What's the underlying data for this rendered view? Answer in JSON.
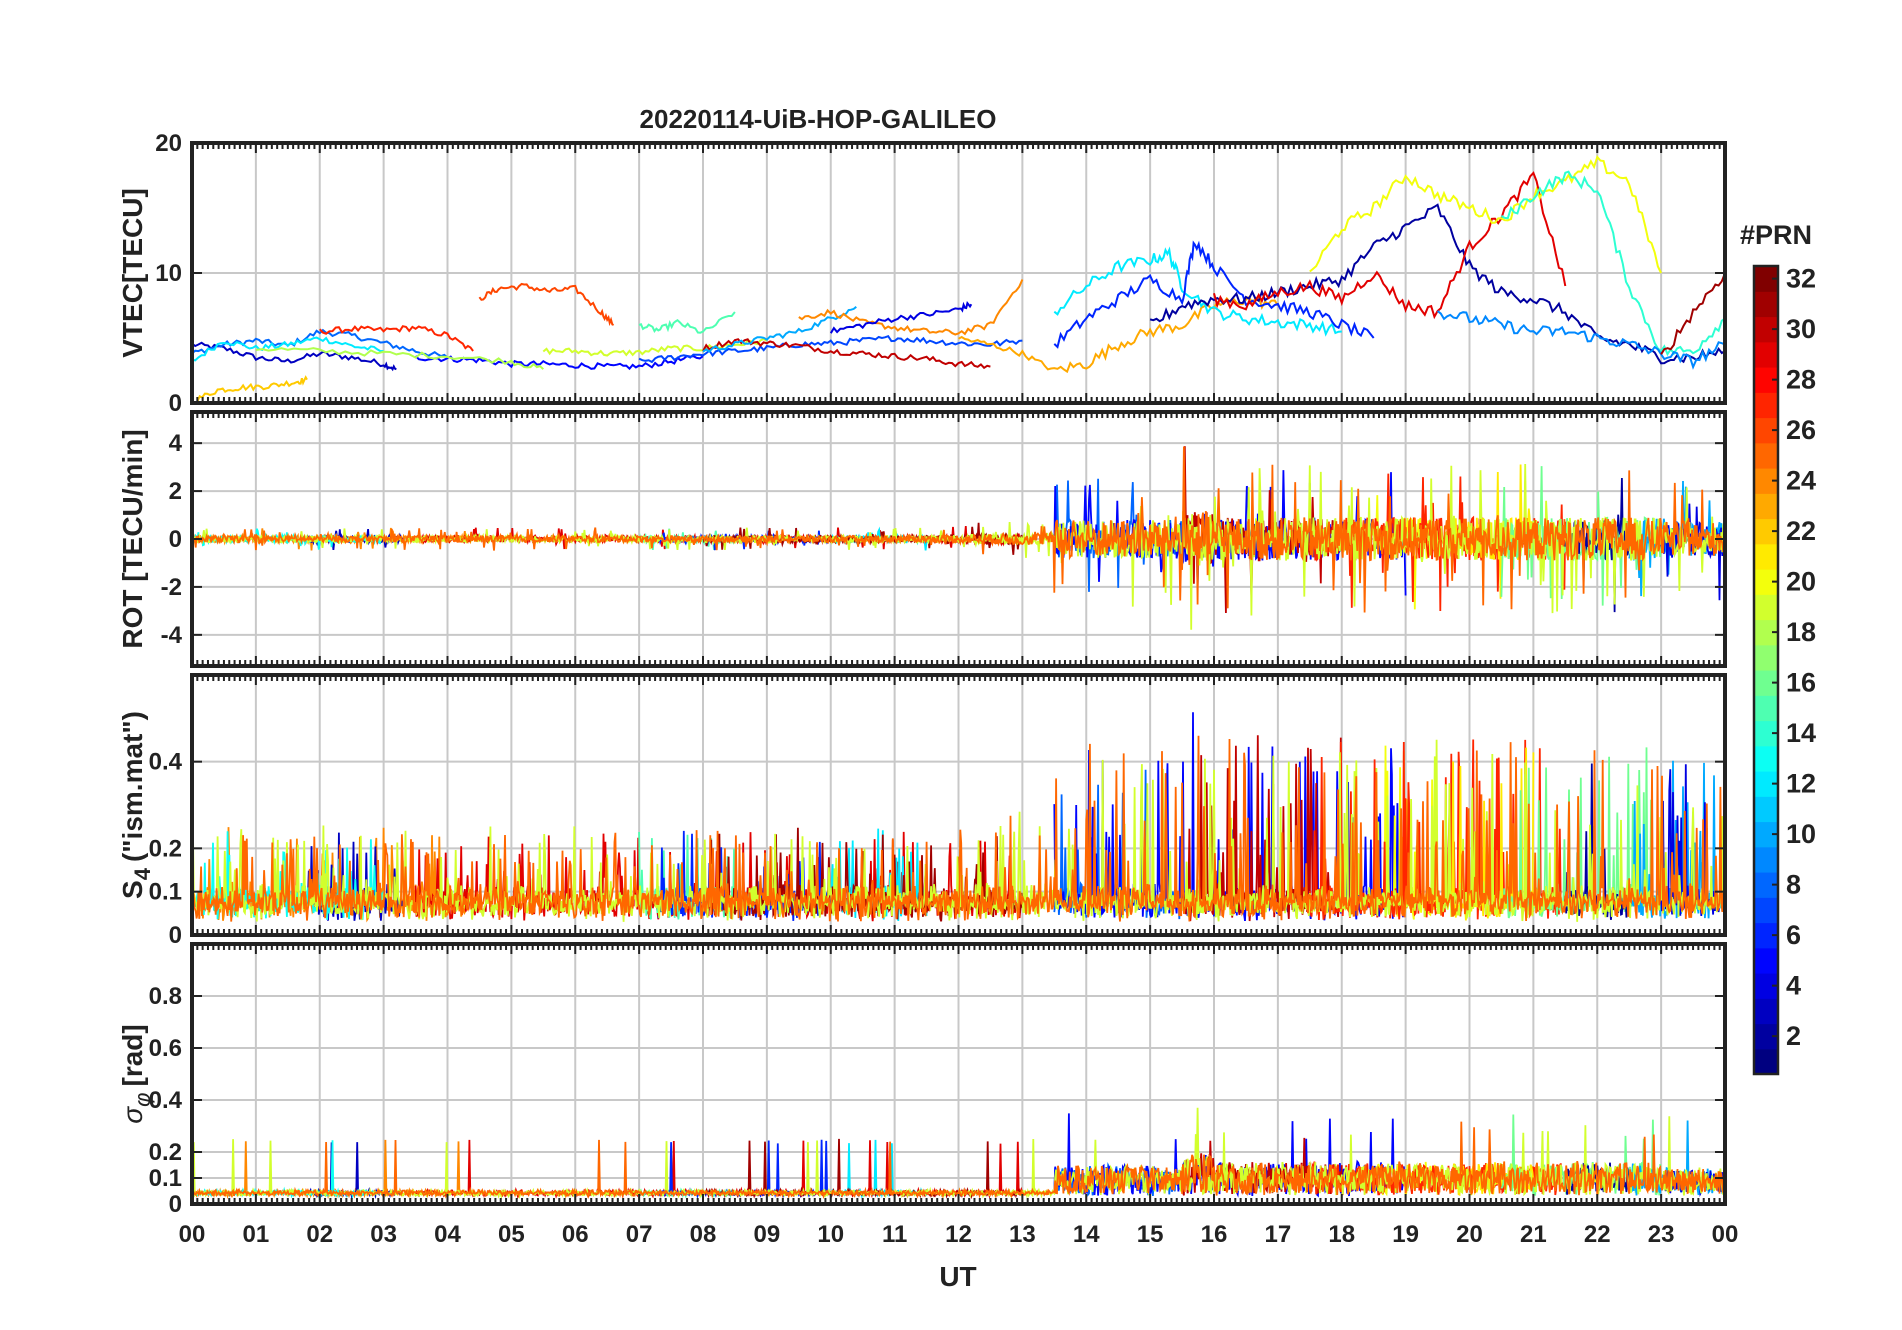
{
  "chart_data": {
    "type": "line",
    "title": "20220114-UiB-HOP-GALILEO",
    "xlabel": "UT",
    "x_ticks": [
      "00",
      "01",
      "02",
      "03",
      "04",
      "05",
      "06",
      "07",
      "08",
      "09",
      "10",
      "11",
      "12",
      "13",
      "14",
      "15",
      "16",
      "17",
      "18",
      "19",
      "20",
      "21",
      "22",
      "23",
      "00"
    ],
    "xlim": [
      0,
      24
    ],
    "grid": true,
    "colorbar": {
      "title": "#PRN",
      "range": [
        1,
        32
      ],
      "ticks": [
        2,
        4,
        6,
        8,
        10,
        12,
        14,
        16,
        18,
        20,
        22,
        24,
        26,
        28,
        30,
        32
      ],
      "colormap": "jet",
      "placement": "right"
    },
    "panels": [
      {
        "id": "vtec",
        "ylabel": "VTEC[TECU]",
        "ylim": [
          0,
          20
        ],
        "yticks": [
          0,
          10,
          20
        ],
        "series": [
          {
            "prn": 3,
            "x": [
              0,
              0.5,
              1,
              1.5,
              2,
              2.5,
              3,
              3.2
            ],
            "y": [
              4.5,
              4.2,
              3.5,
              3.2,
              3.8,
              3.5,
              3.0,
              2.6
            ]
          },
          {
            "prn": 8,
            "x": [
              0,
              0.5,
              1,
              1.5,
              2,
              2.5,
              3,
              3.5,
              4
            ],
            "y": [
              3.8,
              4.5,
              4.8,
              4.4,
              5.5,
              5.2,
              4.6,
              4.0,
              3.5
            ]
          },
          {
            "prn": 12,
            "x": [
              0,
              0.5,
              1,
              1.5,
              2,
              2.5,
              3
            ],
            "y": [
              3.2,
              4.8,
              4.2,
              4.5,
              5.0,
              4.4,
              4.0
            ]
          },
          {
            "prn": 27,
            "x": [
              2,
              2.5,
              3,
              3.5,
              4,
              4.4
            ],
            "y": [
              5.5,
              5.7,
              5.6,
              5.8,
              5.2,
              4.0
            ]
          },
          {
            "prn": 5,
            "x": [
              3.5,
              4,
              4.5,
              5,
              5.5,
              6,
              6.5,
              7,
              7.5,
              8
            ],
            "y": [
              3.5,
              3.4,
              3.3,
              3.0,
              3.0,
              2.9,
              2.8,
              2.8,
              3.2,
              3.6
            ]
          },
          {
            "prn": 22,
            "x": [
              0,
              0.4,
              0.8,
              1.2,
              1.6,
              1.8
            ],
            "y": [
              0.1,
              1.0,
              1.2,
              1.3,
              1.6,
              1.8
            ]
          },
          {
            "prn": 26,
            "x": [
              4.5,
              4.8,
              5.2,
              5.6,
              6,
              6.4,
              6.6
            ],
            "y": [
              8.0,
              8.8,
              9.0,
              8.6,
              8.8,
              7.0,
              6.0
            ]
          },
          {
            "prn": 18,
            "x": [
              1,
              2,
              3,
              4,
              5,
              5.5
            ],
            "y": [
              4.2,
              4.0,
              3.8,
              3.6,
              3.2,
              2.6
            ]
          },
          {
            "prn": 19,
            "x": [
              5.5,
              6,
              6.5,
              7,
              7.5,
              8,
              8.5,
              9
            ],
            "y": [
              4.0,
              4.0,
              3.8,
              3.9,
              4.2,
              4.2,
              4.5,
              4.8
            ]
          },
          {
            "prn": 15,
            "x": [
              7,
              7.3,
              7.6,
              8,
              8.5
            ],
            "y": [
              6.0,
              5.6,
              6.2,
              5.4,
              7.0
            ]
          },
          {
            "prn": 7,
            "x": [
              7,
              7.5,
              8,
              8.5,
              9,
              9.5,
              10,
              10.5,
              11,
              11.5,
              12,
              12.5,
              13
            ],
            "y": [
              3.2,
              3.5,
              3.8,
              4.0,
              4.2,
              4.5,
              4.6,
              4.8,
              5.0,
              4.8,
              4.6,
              4.5,
              4.8
            ]
          },
          {
            "prn": 30,
            "x": [
              8,
              8.5,
              9,
              9.5,
              10,
              10.5,
              11,
              11.5,
              12,
              12.5
            ],
            "y": [
              4.2,
              4.8,
              4.6,
              4.4,
              4.0,
              3.8,
              3.6,
              3.4,
              3.0,
              2.8
            ]
          },
          {
            "prn": 10,
            "x": [
              8,
              8.5,
              9,
              9.5,
              10,
              10.4
            ],
            "y": [
              4.0,
              4.5,
              5.0,
              5.5,
              6.5,
              7.4
            ]
          },
          {
            "prn": 24,
            "x": [
              9.5,
              10,
              10.5,
              11,
              11.5,
              12,
              12.5,
              13
            ],
            "y": [
              6.5,
              7.0,
              6.2,
              5.8,
              5.5,
              5.4,
              6.0,
              9.5
            ]
          },
          {
            "prn": 4,
            "x": [
              10,
              10.5,
              11,
              11.5,
              12,
              12.2
            ],
            "y": [
              5.5,
              6.0,
              6.5,
              6.8,
              7.2,
              7.6
            ]
          },
          {
            "prn": 23,
            "x": [
              12,
              12.5,
              13,
              13.5,
              14,
              14.5,
              15,
              15.5,
              16,
              16.5,
              17
            ],
            "y": [
              5.0,
              4.5,
              3.8,
              2.5,
              3.0,
              4.5,
              5.5,
              6.0,
              7.5,
              8.0,
              7.5
            ]
          },
          {
            "prn": 12,
            "x": [
              13.5,
              14,
              14.5,
              15,
              15.3,
              15.5,
              16,
              16.5,
              17,
              17.5,
              18
            ],
            "y": [
              7.0,
              9.0,
              10.5,
              11.0,
              11.5,
              9.0,
              7.0,
              6.5,
              6.2,
              6.0,
              5.5
            ]
          },
          {
            "prn": 6,
            "x": [
              13.5,
              14,
              14.5,
              15,
              15.5,
              15.7,
              16,
              16.5,
              17,
              17.5,
              18,
              18.5
            ],
            "y": [
              4.5,
              6.5,
              8.0,
              9.5,
              8.0,
              12.5,
              10.5,
              8.0,
              7.5,
              7.0,
              6.0,
              5.0
            ]
          },
          {
            "prn": 2,
            "x": [
              15,
              15.5,
              16,
              16.5,
              17,
              17.5,
              18,
              18.5,
              19,
              19.5,
              20,
              20.5,
              21,
              21.5,
              22,
              22.5,
              23,
              23.5,
              24
            ],
            "y": [
              6.0,
              7.5,
              8.0,
              8.0,
              8.5,
              9.0,
              9.5,
              12.0,
              13.5,
              15.0,
              10.5,
              8.5,
              8.0,
              7.0,
              5.0,
              4.5,
              3.5,
              3.5,
              4.0
            ]
          },
          {
            "prn": 29,
            "x": [
              16,
              16.5,
              17,
              17.5,
              18,
              18.5,
              19,
              19.5,
              20,
              20.5,
              21,
              21.5
            ],
            "y": [
              8.0,
              7.5,
              8.5,
              9.0,
              8.0,
              10.0,
              7.5,
              7.0,
              12.0,
              14.5,
              17.5,
              9.0
            ]
          },
          {
            "prn": 20,
            "x": [
              17.5,
              18,
              18.5,
              19,
              19.5,
              20,
              20.5,
              21,
              21.5,
              22,
              22.5,
              23
            ],
            "y": [
              10.0,
              13.5,
              15.0,
              17.5,
              16.0,
              15.0,
              14.0,
              16.0,
              17.0,
              18.5,
              17.0,
              10.0
            ]
          },
          {
            "prn": 14,
            "x": [
              20.5,
              21,
              21.5,
              22,
              22.5,
              23,
              23.5,
              24
            ],
            "y": [
              14.0,
              16.0,
              17.5,
              16.5,
              9.0,
              4.0,
              4.0,
              6.5
            ]
          },
          {
            "prn": 9,
            "x": [
              19.5,
              20,
              20.5,
              21,
              21.5,
              22,
              22.5,
              23,
              23.5,
              24
            ],
            "y": [
              7.0,
              6.5,
              6.0,
              5.5,
              5.5,
              5.0,
              4.5,
              3.8,
              3.2,
              4.5
            ]
          },
          {
            "prn": 31,
            "x": [
              23,
              23.5,
              24
            ],
            "y": [
              3.5,
              7.0,
              10.0
            ]
          }
        ]
      },
      {
        "id": "rot",
        "ylabel": "ROT [TECU/min]",
        "ylim": [
          -5.3,
          5.3
        ],
        "yticks": [
          -4,
          -2,
          0,
          2,
          4
        ]
      },
      {
        "id": "s4",
        "ylabel": "S4 (\"ism.mat\")",
        "ylabel_main": "S",
        "ylabel_sub": "4",
        "ylabel_rest": "(\"ism.mat\")",
        "ylim": [
          0,
          0.6
        ],
        "yticks": [
          0,
          0.1,
          0.2,
          0.4
        ],
        "ytick_labels": [
          "0",
          "0.1",
          "0.2",
          "0.4"
        ]
      },
      {
        "id": "sigma_phi",
        "ylabel": "σφ[rad]",
        "ylabel_main": "σ",
        "ylabel_sub": "φ",
        "ylabel_rest": "[rad]",
        "ylim": [
          0,
          1
        ],
        "yticks": [
          0,
          0.1,
          0.2,
          0.4,
          0.6,
          0.8
        ],
        "ytick_labels": [
          "0",
          "0.1",
          "0.2",
          "0.4",
          "0.6",
          "0.8"
        ]
      }
    ]
  }
}
